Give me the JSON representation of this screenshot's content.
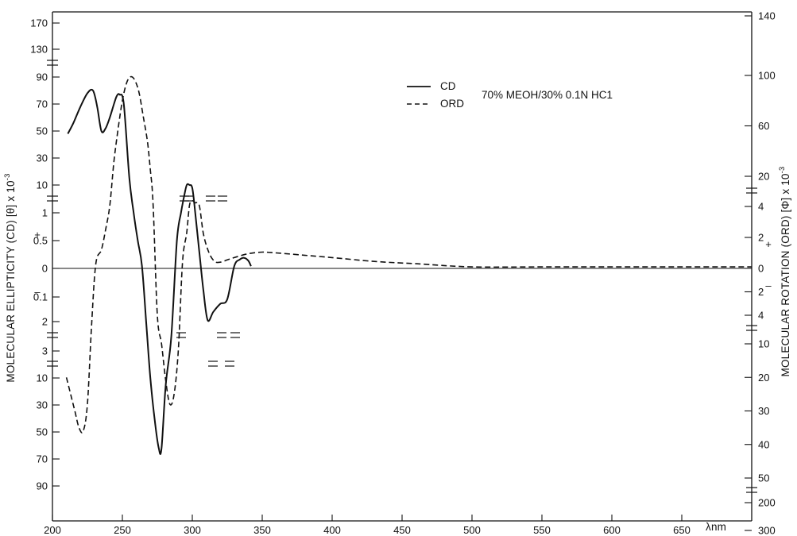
{
  "chart_data": {
    "type": "line",
    "xlabel": "λnm",
    "ylabel_left": "MOLECULAR ELLIPTICITY (CD) [θ] x 10",
    "ylabel_left_exponent": "-3",
    "ylabel_right": "MOLECULAR ROTATION (ORD) [Φ] x 10",
    "ylabel_right_exponent": "-3",
    "annotation": "70% MEOH/30% 0.1N HC1",
    "legend_placement": "top-center",
    "legend": [
      {
        "label": "CD",
        "style": "solid"
      },
      {
        "label": "ORD",
        "style": "dashed"
      }
    ],
    "x_ticks": [
      {
        "value": 200,
        "label": "200"
      },
      {
        "value": 250,
        "label": "250"
      },
      {
        "value": 300,
        "label": "300"
      },
      {
        "value": 350,
        "label": "350"
      },
      {
        "value": 400,
        "label": "400"
      },
      {
        "value": 450,
        "label": "450"
      },
      {
        "value": 500,
        "label": "500"
      },
      {
        "value": 550,
        "label": "550"
      },
      {
        "value": 600,
        "label": "600"
      },
      {
        "value": 650,
        "label": "650"
      }
    ],
    "xlim": [
      200,
      700
    ],
    "left_axis_ticks": [
      {
        "label": "170",
        "value": 170
      },
      {
        "label": "130",
        "value": 130
      },
      {
        "label": "90",
        "value": 90
      },
      {
        "label": "70",
        "value": 70
      },
      {
        "label": "50",
        "value": 50
      },
      {
        "label": "30",
        "value": 30
      },
      {
        "label": "10",
        "value": 10
      },
      {
        "label": "1",
        "value": 1
      },
      {
        "label": "0.5",
        "value": 0.5
      },
      {
        "label": "0",
        "value": 0
      },
      {
        "label": "0.1",
        "value": -0.1
      },
      {
        "label": "2",
        "value": -2
      },
      {
        "label": "3",
        "value": -3
      },
      {
        "label": "10",
        "value": -10
      },
      {
        "label": "30",
        "value": -30
      },
      {
        "label": "50",
        "value": -50
      },
      {
        "label": "70",
        "value": -70
      },
      {
        "label": "90",
        "value": -90
      }
    ],
    "right_axis_ticks": [
      {
        "label": "140",
        "value": 140
      },
      {
        "label": "100",
        "value": 100
      },
      {
        "label": "60",
        "value": 60
      },
      {
        "label": "20",
        "value": 20
      },
      {
        "label": "4",
        "value": 4
      },
      {
        "label": "2",
        "value": 2
      },
      {
        "label": "0",
        "value": 0
      },
      {
        "label": "2",
        "value": -2
      },
      {
        "label": "4",
        "value": -4
      },
      {
        "label": "10",
        "value": -10
      },
      {
        "label": "20",
        "value": -20
      },
      {
        "label": "30",
        "value": -30
      },
      {
        "label": "40",
        "value": -40
      },
      {
        "label": "50",
        "value": -50
      },
      {
        "label": "200",
        "value": -200
      },
      {
        "label": "300",
        "value": -300
      }
    ],
    "left_sign_labels": {
      "positive": "+",
      "negative": "–"
    },
    "right_sign_labels": {
      "positive": "+",
      "negative": "–"
    },
    "series": [
      {
        "name": "CD",
        "axis": "left",
        "style": "solid",
        "x": [
          211,
          215,
          220,
          225,
          229,
          232,
          235,
          238,
          241,
          244,
          246,
          248,
          251,
          255,
          258,
          261,
          264,
          267,
          270,
          273,
          276,
          278,
          281,
          285,
          289,
          292,
          294,
          296,
          298,
          300,
          302,
          305,
          308,
          311,
          315,
          320,
          325,
          330,
          334,
          337,
          340,
          342
        ],
        "y": [
          48,
          56,
          68,
          78,
          80,
          68,
          50,
          52,
          60,
          70,
          76,
          77,
          70,
          15,
          1.2,
          0.5,
          0.05,
          -2,
          -10,
          -40,
          -62,
          -62,
          -15,
          -2.5,
          0.5,
          1.2,
          6,
          10,
          10,
          9,
          1.5,
          0.3,
          -0.08,
          -1.9,
          -1.25,
          -0.63,
          -0.28,
          0.04,
          0.16,
          0.19,
          0.14,
          0.04
        ]
      },
      {
        "name": "ORD",
        "axis": "right",
        "style": "dashed",
        "x": [
          210,
          213,
          216,
          219,
          222,
          225,
          228,
          231,
          235,
          238,
          241,
          244,
          247,
          250,
          253,
          256,
          259,
          262,
          265,
          268,
          270,
          272,
          275,
          278,
          281,
          284,
          287,
          290,
          293,
          296,
          298,
          300,
          302,
          305,
          308,
          312,
          316,
          320,
          325,
          330,
          340,
          350,
          360,
          380,
          400,
          430,
          460,
          500,
          550,
          600,
          650,
          700
        ],
        "y": [
          -20,
          -25,
          -30,
          -35,
          -36,
          -28,
          -6,
          0.3,
          1.2,
          2.5,
          4.5,
          32,
          58,
          80,
          94,
          99,
          96,
          86,
          67,
          47,
          25,
          4.7,
          -4,
          -10,
          -21,
          -28,
          -25,
          -12,
          0.4,
          2.3,
          4.7,
          7,
          6,
          4.5,
          2.2,
          1.0,
          0.45,
          0.4,
          0.55,
          0.7,
          0.95,
          1.05,
          1.0,
          0.85,
          0.7,
          0.45,
          0.3,
          0.1,
          0.1,
          0.1,
          0.1,
          0.1
        ]
      }
    ],
    "zero_line": 0
  }
}
